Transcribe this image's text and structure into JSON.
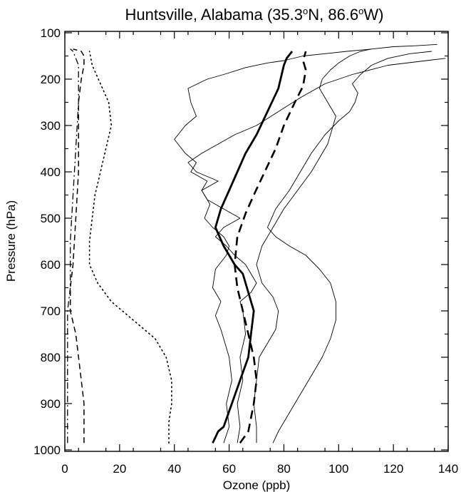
{
  "chart_data": {
    "type": "line",
    "title": "Huntsville, Alabama (35.3",
    "title_parts": [
      "Huntsville, Alabama (35.3",
      "o",
      "N, 86.6",
      "o",
      "W)"
    ],
    "xlabel": "Ozone (ppb)",
    "ylabel": "Pressure (hPa)",
    "xlim": [
      0,
      140
    ],
    "ylim": [
      1000,
      100
    ],
    "y_axis_inverted": true,
    "x_ticks": [
      0,
      20,
      40,
      60,
      80,
      100,
      120,
      140
    ],
    "y_ticks": [
      100,
      200,
      300,
      400,
      500,
      600,
      700,
      800,
      900,
      1000
    ],
    "grid": false,
    "legend": "none",
    "series": [
      {
        "style": "solid-thick",
        "x": [
          54,
          56,
          58,
          61,
          64,
          67,
          68,
          69,
          68,
          67,
          65,
          62,
          58,
          55,
          57,
          60,
          63,
          66,
          70,
          74,
          78,
          80,
          81,
          83
        ],
        "y": [
          985,
          960,
          950,
          900,
          850,
          800,
          750,
          700,
          680,
          660,
          620,
          600,
          560,
          520,
          480,
          440,
          400,
          360,
          320,
          270,
          220,
          170,
          155,
          140
        ]
      },
      {
        "style": "dashed-thick",
        "x": [
          64,
          67,
          69,
          70,
          69,
          67,
          65,
          63,
          62,
          63,
          66,
          69,
          73,
          77,
          80,
          84,
          87,
          88,
          87,
          88
        ],
        "y": [
          985,
          960,
          900,
          850,
          800,
          750,
          700,
          650,
          600,
          540,
          490,
          450,
          400,
          350,
          300,
          250,
          215,
          180,
          160,
          140
        ]
      },
      {
        "style": "dotted",
        "x": [
          38,
          38,
          39,
          39,
          37,
          33,
          25,
          17,
          12,
          9,
          9,
          10,
          11,
          13,
          15,
          17,
          16,
          13,
          10,
          9
        ],
        "y": [
          985,
          940,
          900,
          850,
          800,
          760,
          720,
          680,
          640,
          600,
          550,
          500,
          450,
          400,
          350,
          300,
          250,
          210,
          170,
          140
        ]
      },
      {
        "style": "dashed-thin",
        "x": [
          7,
          7,
          6,
          4,
          2,
          2,
          3,
          4,
          5,
          5,
          5,
          6,
          7,
          7,
          6,
          3
        ],
        "y": [
          985,
          900,
          850,
          750,
          700,
          650,
          600,
          500,
          400,
          300,
          250,
          200,
          170,
          150,
          140,
          135
        ]
      },
      {
        "style": "dashdot",
        "x": [
          1,
          1,
          1,
          1,
          2,
          2,
          3,
          4,
          5,
          5,
          5,
          4,
          3,
          2
        ],
        "y": [
          985,
          900,
          800,
          700,
          650,
          550,
          450,
          350,
          250,
          200,
          170,
          155,
          140,
          135
        ]
      },
      {
        "style": "thin",
        "x": [
          58,
          60,
          59,
          61,
          60,
          58,
          57,
          55,
          57,
          54,
          55,
          59,
          60,
          58,
          54,
          51,
          53,
          50,
          52,
          46,
          48,
          44,
          40,
          44,
          48,
          46,
          45,
          52,
          58,
          66,
          74,
          80,
          87,
          95,
          103,
          112,
          120,
          128,
          136
        ],
        "y": [
          985,
          950,
          900,
          850,
          800,
          760,
          740,
          710,
          680,
          650,
          610,
          580,
          560,
          540,
          520,
          500,
          470,
          440,
          420,
          400,
          380,
          360,
          330,
          300,
          280,
          250,
          220,
          200,
          190,
          175,
          165,
          160,
          150,
          145,
          140,
          135,
          130,
          128,
          125
        ]
      },
      {
        "style": "thin",
        "x": [
          63,
          64,
          63,
          65,
          64,
          66,
          65,
          64,
          68,
          70,
          68,
          66,
          62,
          59,
          55,
          58,
          64,
          58,
          52,
          50,
          56,
          48,
          45,
          50,
          56,
          62,
          70,
          78,
          86,
          95,
          105,
          118,
          132,
          139
        ],
        "y": [
          985,
          950,
          900,
          850,
          800,
          750,
          700,
          680,
          660,
          640,
          620,
          600,
          580,
          560,
          540,
          520,
          500,
          480,
          460,
          440,
          420,
          400,
          380,
          360,
          340,
          320,
          300,
          270,
          240,
          210,
          190,
          170,
          160,
          155
        ]
      },
      {
        "style": "thin",
        "x": [
          70,
          70,
          69,
          70,
          71,
          75,
          77,
          78,
          76,
          72,
          70,
          72,
          76,
          80,
          85,
          90,
          93,
          96,
          98,
          99,
          97,
          95,
          93,
          94,
          97,
          100,
          104,
          108,
          112
        ],
        "y": [
          985,
          950,
          900,
          850,
          800,
          760,
          740,
          700,
          670,
          640,
          600,
          560,
          520,
          480,
          440,
          400,
          370,
          340,
          300,
          280,
          260,
          240,
          220,
          200,
          180,
          165,
          150,
          140,
          135
        ]
      },
      {
        "style": "thin",
        "x": [
          76,
          78,
          82,
          86,
          90,
          94,
          97,
          99,
          99,
          97,
          93,
          88,
          82,
          77,
          74,
          77,
          82,
          86,
          90,
          95,
          100,
          104,
          106,
          107,
          105,
          108,
          112,
          118,
          126,
          134
        ],
        "y": [
          985,
          960,
          920,
          880,
          840,
          800,
          760,
          720,
          680,
          640,
          610,
          580,
          560,
          540,
          520,
          480,
          440,
          400,
          360,
          320,
          290,
          270,
          250,
          230,
          210,
          190,
          170,
          155,
          145,
          140
        ]
      }
    ]
  }
}
